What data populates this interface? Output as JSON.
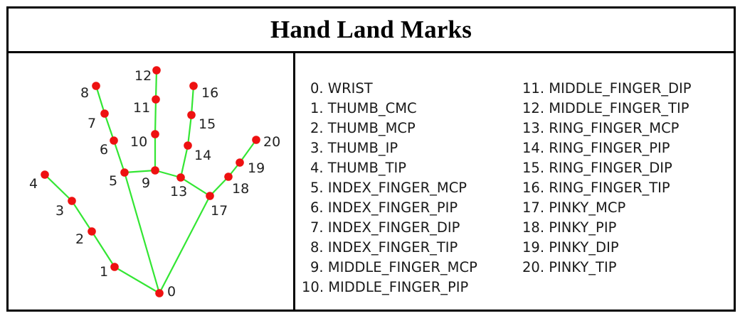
{
  "title": "Hand Land Marks",
  "landmarks": [
    {
      "id": 0,
      "label": "0",
      "legend": "0. WRIST"
    },
    {
      "id": 1,
      "label": "1",
      "legend": "1. THUMB_CMC"
    },
    {
      "id": 2,
      "label": "2",
      "legend": "2. THUMB_MCP"
    },
    {
      "id": 3,
      "label": "3",
      "legend": "3. THUMB_IP"
    },
    {
      "id": 4,
      "label": "4",
      "legend": "4. THUMB_TIP"
    },
    {
      "id": 5,
      "label": "5",
      "legend": "5. INDEX_FINGER_MCP"
    },
    {
      "id": 6,
      "label": "6",
      "legend": "6. INDEX_FINGER_PIP"
    },
    {
      "id": 7,
      "label": "7",
      "legend": "7. INDEX_FINGER_DIP"
    },
    {
      "id": 8,
      "label": "8",
      "legend": "8. INDEX_FINGER_TIP"
    },
    {
      "id": 9,
      "label": "9",
      "legend": "9. MIDDLE_FINGER_MCP"
    },
    {
      "id": 10,
      "label": "10",
      "legend": "10. MIDDLE_FINGER_PIP"
    },
    {
      "id": 11,
      "label": "11",
      "legend": "11. MIDDLE_FINGER_DIP"
    },
    {
      "id": 12,
      "label": "12",
      "legend": "12. MIDDLE_FINGER_TIP"
    },
    {
      "id": 13,
      "label": "13",
      "legend": "13. RING_FINGER_MCP"
    },
    {
      "id": 14,
      "label": "14",
      "legend": "14. RING_FINGER_PIP"
    },
    {
      "id": 15,
      "label": "15",
      "legend": "15. RING_FINGER_DIP"
    },
    {
      "id": 16,
      "label": "16",
      "legend": "16. RING_FINGER_TIP"
    },
    {
      "id": 17,
      "label": "17",
      "legend": "17. PINKY_MCP"
    },
    {
      "id": 18,
      "label": "18",
      "legend": "18. PINKY_PIP"
    },
    {
      "id": 19,
      "label": "19",
      "legend": "19. PINKY_DIP"
    },
    {
      "id": 20,
      "label": "20",
      "legend": "20. PINKY_TIP"
    }
  ],
  "connections": [
    [
      0,
      1
    ],
    [
      1,
      2
    ],
    [
      2,
      3
    ],
    [
      3,
      4
    ],
    [
      0,
      5
    ],
    [
      5,
      6
    ],
    [
      6,
      7
    ],
    [
      7,
      8
    ],
    [
      5,
      9
    ],
    [
      9,
      10
    ],
    [
      10,
      11
    ],
    [
      11,
      12
    ],
    [
      9,
      13
    ],
    [
      13,
      14
    ],
    [
      14,
      15
    ],
    [
      15,
      16
    ],
    [
      13,
      17
    ],
    [
      0,
      17
    ],
    [
      17,
      18
    ],
    [
      18,
      19
    ],
    [
      19,
      20
    ]
  ],
  "colors": {
    "connection": "#33e633",
    "joint": "#ee1111",
    "border": "#000000"
  }
}
